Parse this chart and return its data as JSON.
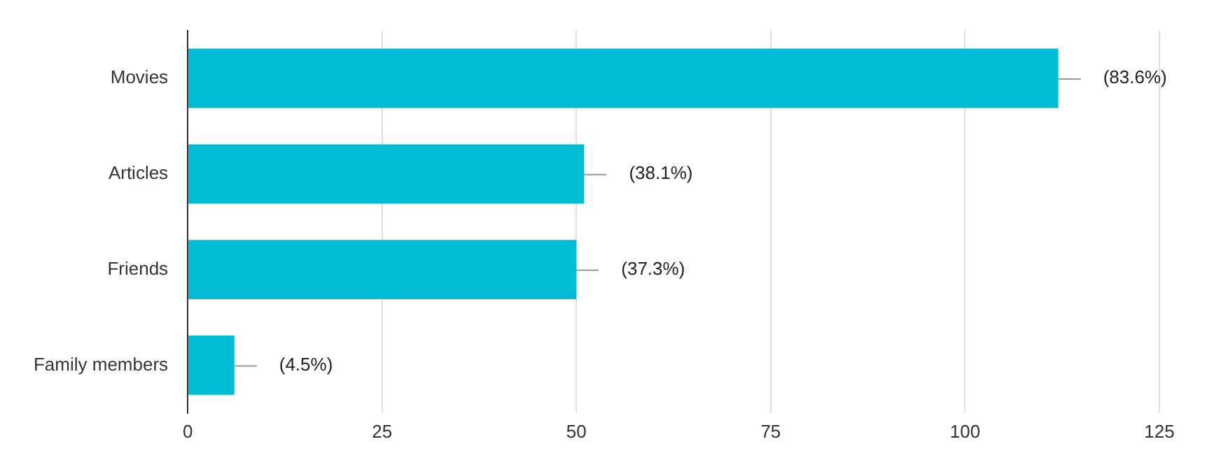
{
  "chart_data": {
    "type": "bar",
    "orientation": "horizontal",
    "categories": [
      "Movies",
      "Articles",
      "Friends",
      "Family members"
    ],
    "values": [
      112,
      51,
      50,
      6
    ],
    "annotations": [
      {
        "text": "(83.6%)",
        "x": 112,
        "y": "Movies"
      },
      {
        "text": "(38.1%)",
        "x": 51,
        "y": "Articles"
      },
      {
        "text": "(37.3%)",
        "x": 50,
        "y": "Friends"
      },
      {
        "text": "(4.5%)",
        "x": 6,
        "y": "Family members"
      }
    ],
    "color": "#00bcd4",
    "xlim": [
      0,
      125
    ],
    "xticks": [
      0,
      25,
      50,
      75,
      100,
      125
    ],
    "grid": "x",
    "legend": false
  }
}
